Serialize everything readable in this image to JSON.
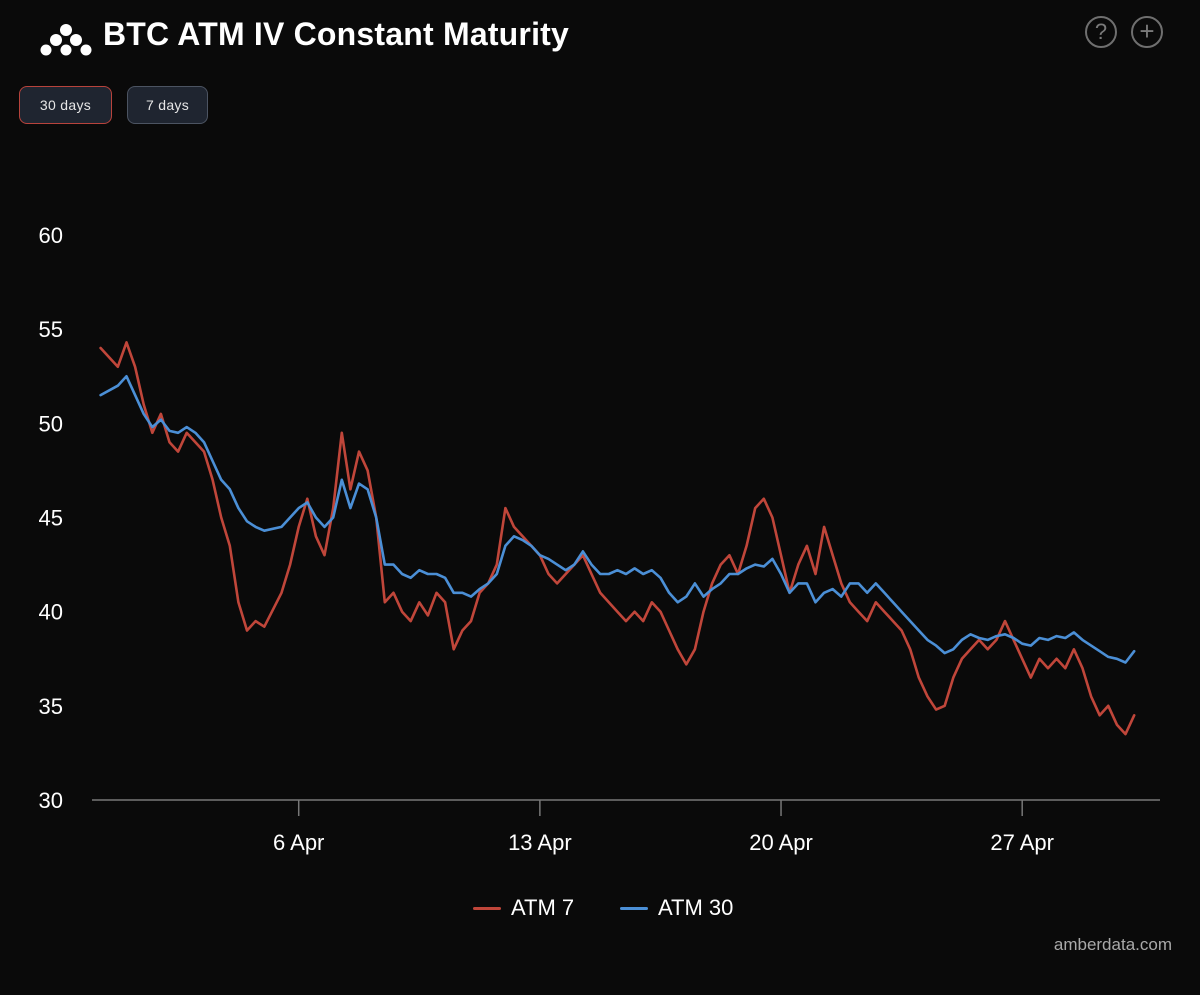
{
  "header": {
    "title": "BTC ATM IV Constant Maturity",
    "help_symbol": "?",
    "add_symbol": "+"
  },
  "range_buttons": [
    {
      "label": "30 days",
      "active": true
    },
    {
      "label": "7 days",
      "active": false
    }
  ],
  "credit": "amberdata.com",
  "chart_data": {
    "type": "line",
    "title": "BTC ATM IV Constant Maturity",
    "xlabel": "",
    "ylabel": "",
    "ylim": [
      30,
      60
    ],
    "yticks": [
      30,
      35,
      40,
      45,
      50,
      55,
      60
    ],
    "xlim": [
      "2023-03-31",
      "2023-05-01"
    ],
    "xticks": [
      {
        "date": "2023-04-06",
        "label": "6 Apr"
      },
      {
        "date": "2023-04-13",
        "label": "13 Apr"
      },
      {
        "date": "2023-04-20",
        "label": "20 Apr"
      },
      {
        "date": "2023-04-27",
        "label": "27 Apr"
      }
    ],
    "grid": false,
    "legend_position": "bottom",
    "series": [
      {
        "name": "ATM 7",
        "color": "#c0463a",
        "points": [
          [
            "2023-03-31 06:00",
            54.0
          ],
          [
            "2023-03-31 18:00",
            53.0
          ],
          [
            "2023-04-01 00:00",
            54.3
          ],
          [
            "2023-04-01 06:00",
            53.0
          ],
          [
            "2023-04-01 12:00",
            51.0
          ],
          [
            "2023-04-01 18:00",
            49.5
          ],
          [
            "2023-04-02 00:00",
            50.5
          ],
          [
            "2023-04-02 06:00",
            49.0
          ],
          [
            "2023-04-02 12:00",
            48.5
          ],
          [
            "2023-04-02 18:00",
            49.5
          ],
          [
            "2023-04-03 00:00",
            49.0
          ],
          [
            "2023-04-03 06:00",
            48.5
          ],
          [
            "2023-04-03 12:00",
            47.0
          ],
          [
            "2023-04-03 18:00",
            45.0
          ],
          [
            "2023-04-04 00:00",
            43.5
          ],
          [
            "2023-04-04 06:00",
            40.5
          ],
          [
            "2023-04-04 12:00",
            39.0
          ],
          [
            "2023-04-04 18:00",
            39.5
          ],
          [
            "2023-04-05 00:00",
            39.2
          ],
          [
            "2023-04-05 12:00",
            41.0
          ],
          [
            "2023-04-05 18:00",
            42.5
          ],
          [
            "2023-04-06 00:00",
            44.5
          ],
          [
            "2023-04-06 06:00",
            46.0
          ],
          [
            "2023-04-06 12:00",
            44.0
          ],
          [
            "2023-04-06 18:00",
            43.0
          ],
          [
            "2023-04-07 00:00",
            45.5
          ],
          [
            "2023-04-07 06:00",
            49.5
          ],
          [
            "2023-04-07 12:00",
            46.5
          ],
          [
            "2023-04-07 18:00",
            48.5
          ],
          [
            "2023-04-08 00:00",
            47.5
          ],
          [
            "2023-04-08 06:00",
            45.0
          ],
          [
            "2023-04-08 12:00",
            40.5
          ],
          [
            "2023-04-08 18:00",
            41.0
          ],
          [
            "2023-04-09 00:00",
            40.0
          ],
          [
            "2023-04-09 06:00",
            39.5
          ],
          [
            "2023-04-09 12:00",
            40.5
          ],
          [
            "2023-04-09 18:00",
            39.8
          ],
          [
            "2023-04-10 00:00",
            41.0
          ],
          [
            "2023-04-10 06:00",
            40.5
          ],
          [
            "2023-04-10 12:00",
            38.0
          ],
          [
            "2023-04-10 18:00",
            39.0
          ],
          [
            "2023-04-11 00:00",
            39.5
          ],
          [
            "2023-04-11 06:00",
            41.0
          ],
          [
            "2023-04-11 12:00",
            41.5
          ],
          [
            "2023-04-11 18:00",
            42.5
          ],
          [
            "2023-04-12 00:00",
            45.5
          ],
          [
            "2023-04-12 06:00",
            44.5
          ],
          [
            "2023-04-12 12:00",
            44.0
          ],
          [
            "2023-04-12 18:00",
            43.5
          ],
          [
            "2023-04-13 00:00",
            43.0
          ],
          [
            "2023-04-13 06:00",
            42.0
          ],
          [
            "2023-04-13 12:00",
            41.5
          ],
          [
            "2023-04-13 18:00",
            42.0
          ],
          [
            "2023-04-14 00:00",
            42.5
          ],
          [
            "2023-04-14 06:00",
            43.0
          ],
          [
            "2023-04-14 12:00",
            42.0
          ],
          [
            "2023-04-14 18:00",
            41.0
          ],
          [
            "2023-04-15 00:00",
            40.5
          ],
          [
            "2023-04-15 06:00",
            40.0
          ],
          [
            "2023-04-15 12:00",
            39.5
          ],
          [
            "2023-04-15 18:00",
            40.0
          ],
          [
            "2023-04-16 00:00",
            39.5
          ],
          [
            "2023-04-16 06:00",
            40.5
          ],
          [
            "2023-04-16 12:00",
            40.0
          ],
          [
            "2023-04-16 18:00",
            39.0
          ],
          [
            "2023-04-17 00:00",
            38.0
          ],
          [
            "2023-04-17 06:00",
            37.2
          ],
          [
            "2023-04-17 12:00",
            38.0
          ],
          [
            "2023-04-17 18:00",
            40.0
          ],
          [
            "2023-04-18 00:00",
            41.5
          ],
          [
            "2023-04-18 06:00",
            42.5
          ],
          [
            "2023-04-18 12:00",
            43.0
          ],
          [
            "2023-04-18 18:00",
            42.0
          ],
          [
            "2023-04-19 00:00",
            43.5
          ],
          [
            "2023-04-19 06:00",
            45.5
          ],
          [
            "2023-04-19 12:00",
            46.0
          ],
          [
            "2023-04-19 18:00",
            45.0
          ],
          [
            "2023-04-20 00:00",
            43.0
          ],
          [
            "2023-04-20 06:00",
            41.0
          ],
          [
            "2023-04-20 12:00",
            42.5
          ],
          [
            "2023-04-20 18:00",
            43.5
          ],
          [
            "2023-04-21 00:00",
            42.0
          ],
          [
            "2023-04-21 06:00",
            44.5
          ],
          [
            "2023-04-21 12:00",
            43.0
          ],
          [
            "2023-04-21 18:00",
            41.5
          ],
          [
            "2023-04-22 00:00",
            40.5
          ],
          [
            "2023-04-22 06:00",
            40.0
          ],
          [
            "2023-04-22 12:00",
            39.5
          ],
          [
            "2023-04-22 18:00",
            40.5
          ],
          [
            "2023-04-23 00:00",
            40.0
          ],
          [
            "2023-04-23 06:00",
            39.5
          ],
          [
            "2023-04-23 12:00",
            39.0
          ],
          [
            "2023-04-23 18:00",
            38.0
          ],
          [
            "2023-04-24 00:00",
            36.5
          ],
          [
            "2023-04-24 06:00",
            35.5
          ],
          [
            "2023-04-24 12:00",
            34.8
          ],
          [
            "2023-04-24 18:00",
            35.0
          ],
          [
            "2023-04-25 00:00",
            36.5
          ],
          [
            "2023-04-25 06:00",
            37.5
          ],
          [
            "2023-04-25 12:00",
            38.0
          ],
          [
            "2023-04-25 18:00",
            38.5
          ],
          [
            "2023-04-26 00:00",
            38.0
          ],
          [
            "2023-04-26 06:00",
            38.5
          ],
          [
            "2023-04-26 12:00",
            39.5
          ],
          [
            "2023-04-26 18:00",
            38.5
          ],
          [
            "2023-04-27 00:00",
            37.5
          ],
          [
            "2023-04-27 06:00",
            36.5
          ],
          [
            "2023-04-27 12:00",
            37.5
          ],
          [
            "2023-04-27 18:00",
            37.0
          ],
          [
            "2023-04-28 00:00",
            37.5
          ],
          [
            "2023-04-28 06:00",
            37.0
          ],
          [
            "2023-04-28 12:00",
            38.0
          ],
          [
            "2023-04-28 18:00",
            37.0
          ],
          [
            "2023-04-29 00:00",
            35.5
          ],
          [
            "2023-04-29 06:00",
            34.5
          ],
          [
            "2023-04-29 12:00",
            35.0
          ],
          [
            "2023-04-29 18:00",
            34.0
          ],
          [
            "2023-04-30 00:00",
            33.5
          ],
          [
            "2023-04-30 06:00",
            34.5
          ]
        ]
      },
      {
        "name": "ATM 30",
        "color": "#4b8fd6",
        "points": [
          [
            "2023-03-31 06:00",
            51.5
          ],
          [
            "2023-03-31 18:00",
            52.0
          ],
          [
            "2023-04-01 00:00",
            52.5
          ],
          [
            "2023-04-01 06:00",
            51.5
          ],
          [
            "2023-04-01 12:00",
            50.5
          ],
          [
            "2023-04-01 18:00",
            49.8
          ],
          [
            "2023-04-02 00:00",
            50.2
          ],
          [
            "2023-04-02 06:00",
            49.6
          ],
          [
            "2023-04-02 12:00",
            49.5
          ],
          [
            "2023-04-02 18:00",
            49.8
          ],
          [
            "2023-04-03 00:00",
            49.5
          ],
          [
            "2023-04-03 06:00",
            49.0
          ],
          [
            "2023-04-03 12:00",
            48.0
          ],
          [
            "2023-04-03 18:00",
            47.0
          ],
          [
            "2023-04-04 00:00",
            46.5
          ],
          [
            "2023-04-04 06:00",
            45.5
          ],
          [
            "2023-04-04 12:00",
            44.8
          ],
          [
            "2023-04-04 18:00",
            44.5
          ],
          [
            "2023-04-05 00:00",
            44.3
          ],
          [
            "2023-04-05 12:00",
            44.5
          ],
          [
            "2023-04-05 18:00",
            45.0
          ],
          [
            "2023-04-06 00:00",
            45.5
          ],
          [
            "2023-04-06 06:00",
            45.8
          ],
          [
            "2023-04-06 12:00",
            45.0
          ],
          [
            "2023-04-06 18:00",
            44.5
          ],
          [
            "2023-04-07 00:00",
            45.0
          ],
          [
            "2023-04-07 06:00",
            47.0
          ],
          [
            "2023-04-07 12:00",
            45.5
          ],
          [
            "2023-04-07 18:00",
            46.8
          ],
          [
            "2023-04-08 00:00",
            46.5
          ],
          [
            "2023-04-08 06:00",
            45.0
          ],
          [
            "2023-04-08 12:00",
            42.5
          ],
          [
            "2023-04-08 18:00",
            42.5
          ],
          [
            "2023-04-09 00:00",
            42.0
          ],
          [
            "2023-04-09 06:00",
            41.8
          ],
          [
            "2023-04-09 12:00",
            42.2
          ],
          [
            "2023-04-09 18:00",
            42.0
          ],
          [
            "2023-04-10 00:00",
            42.0
          ],
          [
            "2023-04-10 06:00",
            41.8
          ],
          [
            "2023-04-10 12:00",
            41.0
          ],
          [
            "2023-04-10 18:00",
            41.0
          ],
          [
            "2023-04-11 00:00",
            40.8
          ],
          [
            "2023-04-11 06:00",
            41.2
          ],
          [
            "2023-04-11 12:00",
            41.5
          ],
          [
            "2023-04-11 18:00",
            42.0
          ],
          [
            "2023-04-12 00:00",
            43.5
          ],
          [
            "2023-04-12 06:00",
            44.0
          ],
          [
            "2023-04-12 12:00",
            43.8
          ],
          [
            "2023-04-12 18:00",
            43.5
          ],
          [
            "2023-04-13 00:00",
            43.0
          ],
          [
            "2023-04-13 06:00",
            42.8
          ],
          [
            "2023-04-13 12:00",
            42.5
          ],
          [
            "2023-04-13 18:00",
            42.2
          ],
          [
            "2023-04-14 00:00",
            42.5
          ],
          [
            "2023-04-14 06:00",
            43.2
          ],
          [
            "2023-04-14 12:00",
            42.5
          ],
          [
            "2023-04-14 18:00",
            42.0
          ],
          [
            "2023-04-15 00:00",
            42.0
          ],
          [
            "2023-04-15 06:00",
            42.2
          ],
          [
            "2023-04-15 12:00",
            42.0
          ],
          [
            "2023-04-15 18:00",
            42.3
          ],
          [
            "2023-04-16 00:00",
            42.0
          ],
          [
            "2023-04-16 06:00",
            42.2
          ],
          [
            "2023-04-16 12:00",
            41.8
          ],
          [
            "2023-04-16 18:00",
            41.0
          ],
          [
            "2023-04-17 00:00",
            40.5
          ],
          [
            "2023-04-17 06:00",
            40.8
          ],
          [
            "2023-04-17 12:00",
            41.5
          ],
          [
            "2023-04-17 18:00",
            40.8
          ],
          [
            "2023-04-18 00:00",
            41.2
          ],
          [
            "2023-04-18 06:00",
            41.5
          ],
          [
            "2023-04-18 12:00",
            42.0
          ],
          [
            "2023-04-18 18:00",
            42.0
          ],
          [
            "2023-04-19 00:00",
            42.3
          ],
          [
            "2023-04-19 06:00",
            42.5
          ],
          [
            "2023-04-19 12:00",
            42.4
          ],
          [
            "2023-04-19 18:00",
            42.8
          ],
          [
            "2023-04-20 00:00",
            42.0
          ],
          [
            "2023-04-20 06:00",
            41.0
          ],
          [
            "2023-04-20 12:00",
            41.5
          ],
          [
            "2023-04-20 18:00",
            41.5
          ],
          [
            "2023-04-21 00:00",
            40.5
          ],
          [
            "2023-04-21 06:00",
            41.0
          ],
          [
            "2023-04-21 12:00",
            41.2
          ],
          [
            "2023-04-21 18:00",
            40.8
          ],
          [
            "2023-04-22 00:00",
            41.5
          ],
          [
            "2023-04-22 06:00",
            41.5
          ],
          [
            "2023-04-22 12:00",
            41.0
          ],
          [
            "2023-04-22 18:00",
            41.5
          ],
          [
            "2023-04-23 00:00",
            41.0
          ],
          [
            "2023-04-23 06:00",
            40.5
          ],
          [
            "2023-04-23 12:00",
            40.0
          ],
          [
            "2023-04-23 18:00",
            39.5
          ],
          [
            "2023-04-24 00:00",
            39.0
          ],
          [
            "2023-04-24 06:00",
            38.5
          ],
          [
            "2023-04-24 12:00",
            38.2
          ],
          [
            "2023-04-24 18:00",
            37.8
          ],
          [
            "2023-04-25 00:00",
            38.0
          ],
          [
            "2023-04-25 06:00",
            38.5
          ],
          [
            "2023-04-25 12:00",
            38.8
          ],
          [
            "2023-04-25 18:00",
            38.6
          ],
          [
            "2023-04-26 00:00",
            38.5
          ],
          [
            "2023-04-26 06:00",
            38.7
          ],
          [
            "2023-04-26 12:00",
            38.8
          ],
          [
            "2023-04-26 18:00",
            38.6
          ],
          [
            "2023-04-27 00:00",
            38.3
          ],
          [
            "2023-04-27 06:00",
            38.2
          ],
          [
            "2023-04-27 12:00",
            38.6
          ],
          [
            "2023-04-27 18:00",
            38.5
          ],
          [
            "2023-04-28 00:00",
            38.7
          ],
          [
            "2023-04-28 06:00",
            38.6
          ],
          [
            "2023-04-28 12:00",
            38.9
          ],
          [
            "2023-04-28 18:00",
            38.5
          ],
          [
            "2023-04-29 00:00",
            38.2
          ],
          [
            "2023-04-29 06:00",
            37.9
          ],
          [
            "2023-04-29 12:00",
            37.6
          ],
          [
            "2023-04-29 18:00",
            37.5
          ],
          [
            "2023-04-30 00:00",
            37.3
          ],
          [
            "2023-04-30 06:00",
            37.9
          ]
        ]
      }
    ]
  }
}
